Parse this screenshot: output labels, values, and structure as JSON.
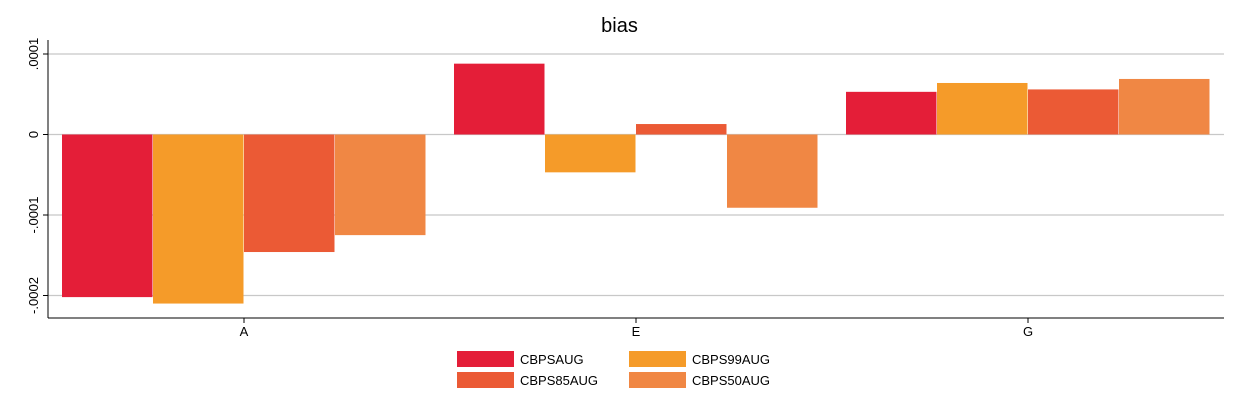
{
  "chart_data": {
    "type": "bar",
    "title": "bias",
    "categories": [
      "A",
      "E",
      "G"
    ],
    "ylim": [
      -0.00022,
      0.0001
    ],
    "yticks": [
      0.0001,
      0,
      -0.0001,
      -0.0002
    ],
    "ytick_labels": [
      ".0001",
      "0",
      "-.0001",
      "-.0002"
    ],
    "grid": true,
    "legend_position": "bottom",
    "series": [
      {
        "name": "CBPSAUG",
        "color": "#e41e38",
        "values": [
          -0.000202,
          8.8e-05,
          5.3e-05
        ]
      },
      {
        "name": "CBPS99AUG",
        "color": "#f59b29",
        "values": [
          -0.00021,
          -4.7e-05,
          6.4e-05
        ]
      },
      {
        "name": "CBPS85AUG",
        "color": "#eb5a35",
        "values": [
          -0.000146,
          1.3e-05,
          5.6e-05
        ]
      },
      {
        "name": "CBPS50AUG",
        "color": "#f08744",
        "values": [
          -0.000125,
          -9.1e-05,
          6.9e-05
        ]
      }
    ]
  }
}
